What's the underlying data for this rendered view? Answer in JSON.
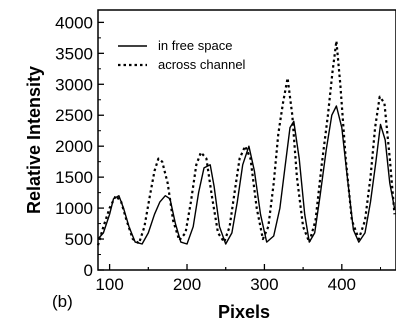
{
  "chart_data": {
    "type": "line",
    "panel_label": "(b)",
    "xlabel": "Pixels",
    "ylabel": "Relative Intensity",
    "xlim": [
      85,
      470
    ],
    "ylim": [
      0,
      4200
    ],
    "x_ticks": [
      100,
      200,
      300,
      400
    ],
    "x_tick_labels": [
      "100",
      "200",
      "300",
      "400"
    ],
    "y_ticks": [
      0,
      500,
      1000,
      1500,
      2000,
      2500,
      3000,
      3500,
      4000
    ],
    "y_tick_labels": [
      "0",
      "500",
      "1000",
      "1500",
      "2000",
      "2500",
      "3000",
      "3500",
      "4000"
    ],
    "legend_position": "top-left",
    "series": [
      {
        "name": "in free space",
        "style": "solid",
        "color": "#000000",
        "x": [
          85,
          92,
          100,
          105,
          112,
          118,
          125,
          133,
          142,
          150,
          158,
          165,
          172,
          178,
          185,
          192,
          200,
          208,
          215,
          222,
          230,
          235,
          242,
          250,
          258,
          265,
          272,
          280,
          287,
          295,
          303,
          312,
          320,
          327,
          333,
          338,
          345,
          352,
          358,
          365,
          372,
          380,
          387,
          393,
          400,
          408,
          415,
          422,
          430,
          437,
          444,
          450,
          456,
          462,
          468
        ],
        "y": [
          500,
          600,
          900,
          1150,
          1200,
          1000,
          700,
          450,
          420,
          600,
          900,
          1100,
          1200,
          1150,
          750,
          450,
          420,
          700,
          1250,
          1650,
          1700,
          1350,
          700,
          420,
          600,
          1100,
          1700,
          2000,
          1600,
          900,
          450,
          550,
          1000,
          1700,
          2300,
          2400,
          1800,
          900,
          450,
          600,
          1200,
          1950,
          2500,
          2650,
          2300,
          1400,
          650,
          450,
          600,
          1100,
          1750,
          2350,
          2100,
          1400,
          1000
        ]
      },
      {
        "name": "across channel",
        "style": "dotted",
        "color": "#000000",
        "x": [
          85,
          92,
          100,
          108,
          115,
          122,
          130,
          138,
          145,
          152,
          158,
          163,
          168,
          175,
          182,
          190,
          198,
          205,
          212,
          218,
          225,
          232,
          240,
          248,
          255,
          262,
          268,
          275,
          282,
          290,
          298,
          305,
          312,
          318,
          324,
          330,
          336,
          342,
          350,
          358,
          366,
          374,
          382,
          388,
          393,
          398,
          405,
          413,
          422,
          430,
          437,
          443,
          449,
          455,
          462,
          468
        ],
        "y": [
          400,
          700,
          1000,
          1200,
          1100,
          800,
          500,
          430,
          700,
          1200,
          1600,
          1800,
          1750,
          1400,
          800,
          480,
          600,
          1100,
          1700,
          1900,
          1800,
          1200,
          600,
          450,
          700,
          1300,
          1800,
          2000,
          1800,
          1000,
          500,
          700,
          1400,
          2200,
          2700,
          3100,
          2500,
          1500,
          700,
          450,
          800,
          1700,
          2500,
          3200,
          3700,
          3000,
          1800,
          800,
          500,
          800,
          1500,
          2300,
          2800,
          2700,
          1800,
          900
        ]
      }
    ]
  }
}
